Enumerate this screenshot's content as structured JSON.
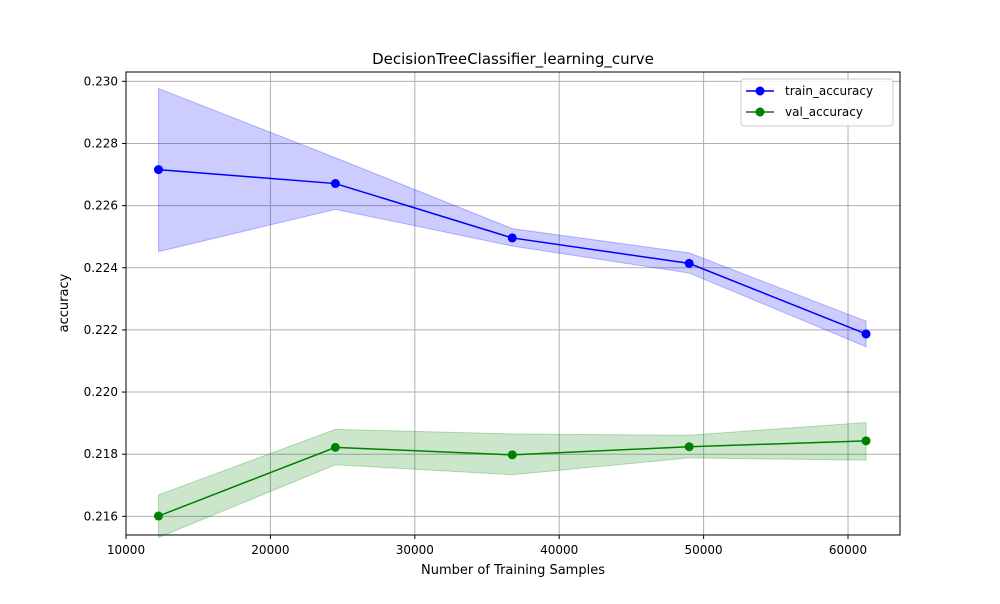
{
  "chart_data": {
    "type": "line",
    "title": "DecisionTreeClassifier_learning_curve",
    "xlabel": "Number of Training Samples",
    "ylabel": "accuracy",
    "xlim": [
      10000,
      63600
    ],
    "ylim": [
      0.2154,
      0.2303
    ],
    "xticks": [
      10000,
      20000,
      30000,
      40000,
      50000,
      60000
    ],
    "xtick_labels": [
      "10000",
      "20000",
      "30000",
      "40000",
      "50000",
      "60000"
    ],
    "yticks": [
      0.216,
      0.218,
      0.22,
      0.222,
      0.224,
      0.226,
      0.228,
      0.23
    ],
    "ytick_labels": [
      "0.216",
      "0.218",
      "0.220",
      "0.222",
      "0.224",
      "0.226",
      "0.228",
      "0.230"
    ],
    "grid": true,
    "legend_position": "top-right",
    "x": [
      12250,
      24500,
      36750,
      49000,
      61250
    ],
    "series": [
      {
        "name": "train_accuracy",
        "color": "#0000ff",
        "band_color": "#0000ff",
        "values": [
          0.22716,
          0.22671,
          0.22496,
          0.22414,
          0.22187
        ],
        "lower": [
          0.22452,
          0.22588,
          0.2247,
          0.22383,
          0.22146
        ],
        "upper": [
          0.22977,
          0.22754,
          0.22526,
          0.22448,
          0.22228
        ]
      },
      {
        "name": "val_accuracy",
        "color": "#008000",
        "band_color": "#008000",
        "values": [
          0.21601,
          0.21822,
          0.21798,
          0.21824,
          0.21843
        ],
        "lower": [
          0.21532,
          0.21766,
          0.21734,
          0.21788,
          0.21781
        ],
        "upper": [
          0.21669,
          0.2188,
          0.21865,
          0.21861,
          0.21902
        ]
      }
    ]
  }
}
